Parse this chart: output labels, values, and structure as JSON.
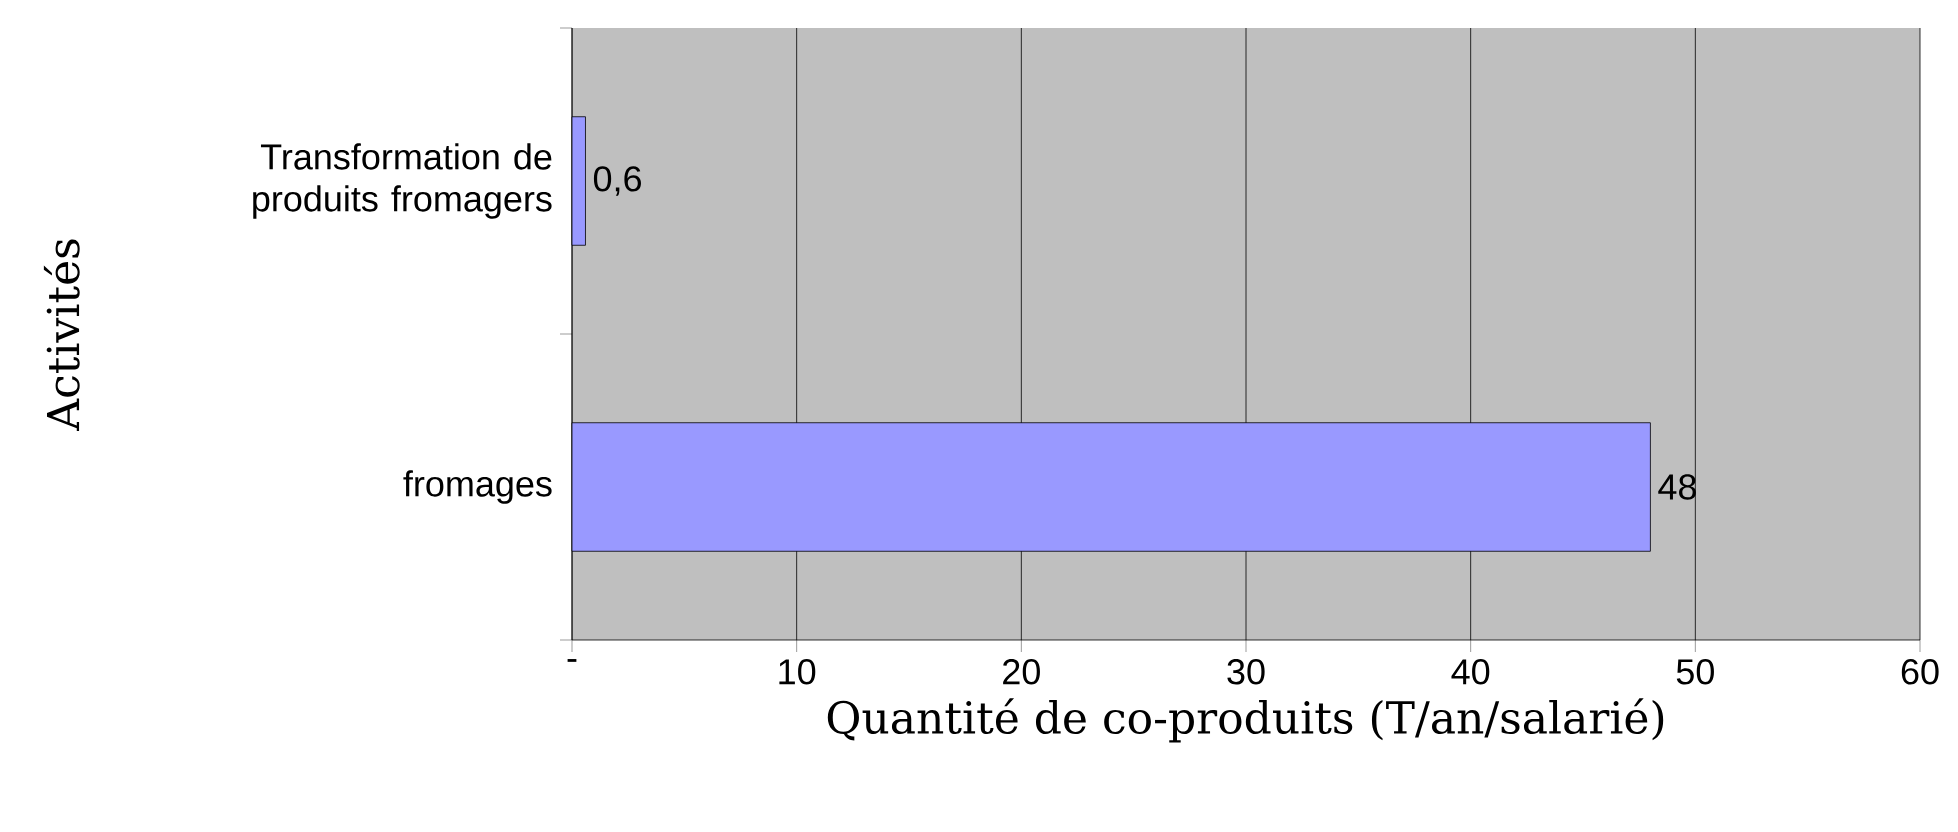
{
  "chart_data": {
    "type": "bar",
    "orientation": "horizontal",
    "xlabel": "Quantité de co-produits (T/an/salarié)",
    "ylabel": "Activités",
    "categories": [
      "Transformation de produits fromagers",
      "fromages"
    ],
    "values": [
      0.6,
      48
    ],
    "value_labels": [
      "0,6",
      "48"
    ],
    "color": "#9999ff",
    "xlim": [
      0,
      60
    ],
    "xticks": [
      {
        "value": 0,
        "label": "-"
      },
      10,
      20,
      30,
      40,
      50,
      60
    ],
    "grid": "x"
  }
}
